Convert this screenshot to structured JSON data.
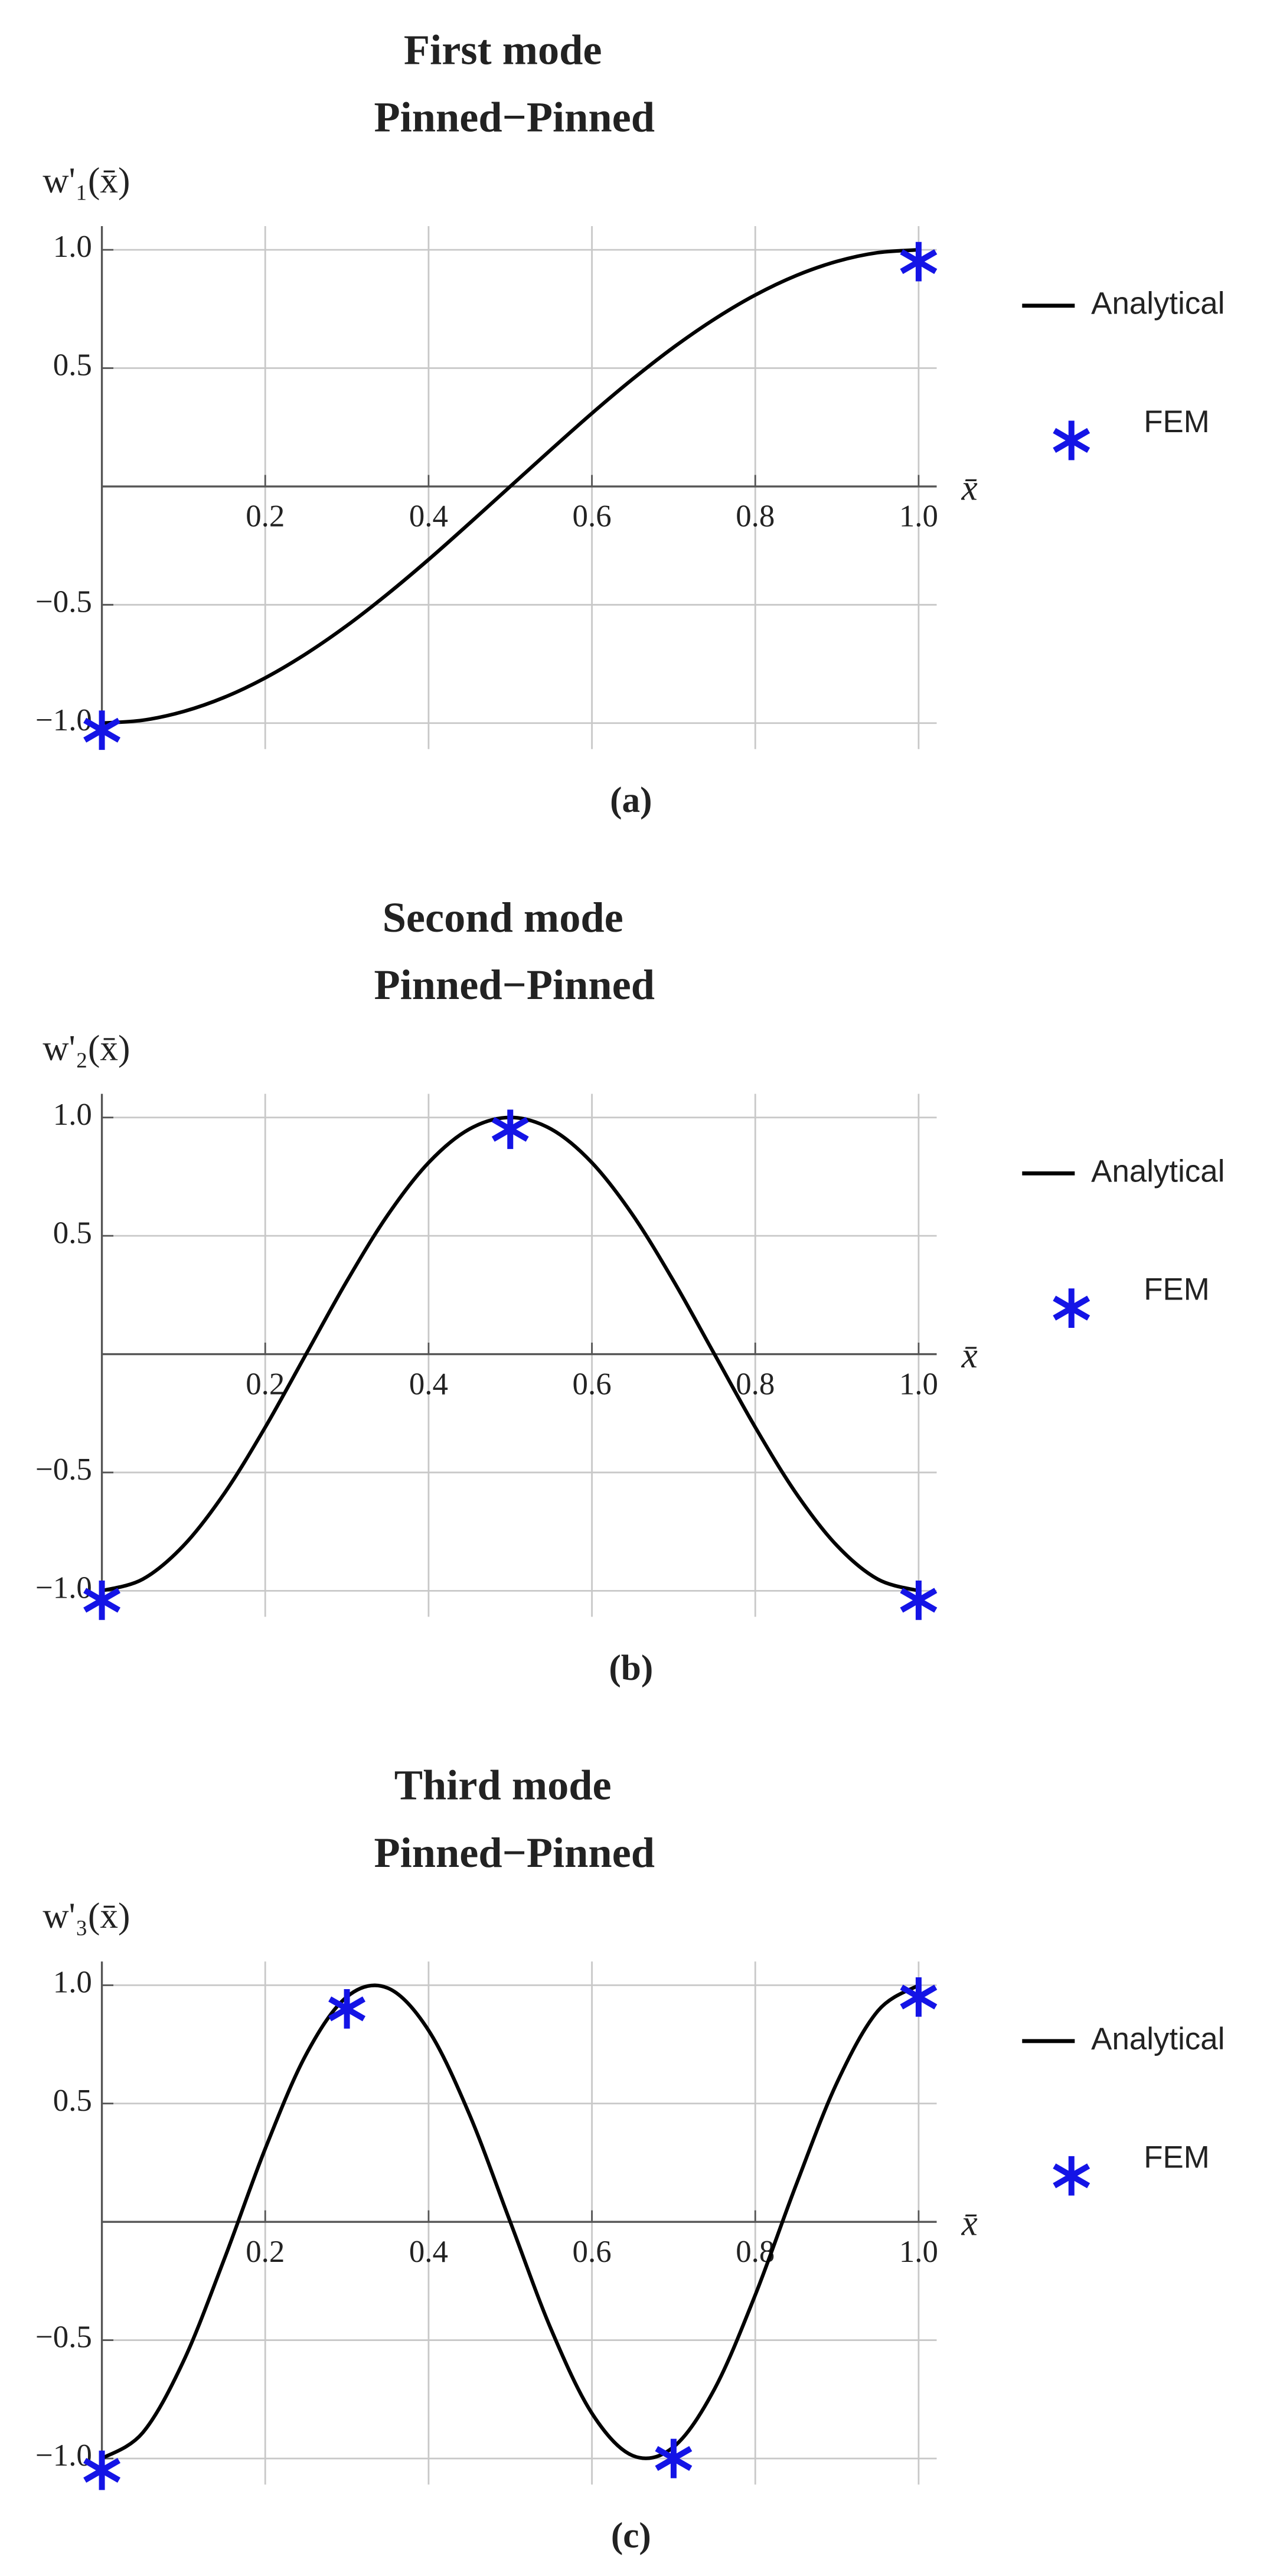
{
  "chart_data": [
    {
      "type": "line",
      "title": "First mode",
      "subtitle": "Pinned−Pinned",
      "y_label": "w'₁(x̄)",
      "x_label": "x̄",
      "caption": "(a)",
      "xlim": [
        0,
        1.022
      ],
      "ylim": [
        -1.11,
        1.1
      ],
      "xticks": [
        0.2,
        0.4,
        0.6,
        0.8,
        {
          "value": 1,
          "label": "1.0"
        }
      ],
      "yticks": [
        {
          "value": -1,
          "label": "−1.0"
        },
        {
          "value": -0.5,
          "label": "−0.5"
        },
        0.5,
        {
          "value": 1,
          "label": "1.0"
        }
      ],
      "grid": true,
      "legend": "right",
      "series": [
        {
          "name": "Analytical",
          "type": "line",
          "color": "#000000",
          "x": [
            0,
            0.05,
            0.1,
            0.15,
            0.2,
            0.25,
            0.3,
            0.35,
            0.4,
            0.45,
            0.5,
            0.55,
            0.6,
            0.65,
            0.7,
            0.75,
            0.8,
            0.85,
            0.9,
            0.95,
            1
          ],
          "values": [
            -1,
            -0.988,
            -0.951,
            -0.891,
            -0.809,
            -0.707,
            -0.588,
            -0.454,
            -0.309,
            -0.156,
            0,
            0.156,
            0.309,
            0.454,
            0.588,
            0.707,
            0.809,
            0.891,
            0.951,
            0.988,
            1
          ]
        },
        {
          "name": "FEM",
          "type": "scatter",
          "color": "#1414e6",
          "x": [
            0,
            1
          ],
          "values": [
            -1.03,
            0.95
          ]
        }
      ]
    },
    {
      "type": "line",
      "title": "Second mode",
      "subtitle": "Pinned−Pinned",
      "y_label": "w'₂(x̄)",
      "x_label": "x̄",
      "caption": "(b)",
      "xlim": [
        0,
        1.022
      ],
      "ylim": [
        -1.11,
        1.1
      ],
      "xticks": [
        0.2,
        0.4,
        0.6,
        0.8,
        {
          "value": 1,
          "label": "1.0"
        }
      ],
      "yticks": [
        {
          "value": -1,
          "label": "−1.0"
        },
        {
          "value": -0.5,
          "label": "−0.5"
        },
        0.5,
        {
          "value": 1,
          "label": "1.0"
        }
      ],
      "grid": true,
      "legend": "right",
      "series": [
        {
          "name": "Analytical",
          "type": "line",
          "color": "#000000",
          "x": [
            0,
            0.05,
            0.1,
            0.15,
            0.2,
            0.25,
            0.3,
            0.35,
            0.4,
            0.45,
            0.5,
            0.55,
            0.6,
            0.65,
            0.7,
            0.75,
            0.8,
            0.85,
            0.9,
            0.95,
            1
          ],
          "values": [
            -1,
            -0.951,
            -0.809,
            -0.588,
            -0.309,
            0,
            0.309,
            0.588,
            0.809,
            0.951,
            1,
            0.951,
            0.809,
            0.588,
            0.309,
            0,
            -0.309,
            -0.588,
            -0.809,
            -0.951,
            -1
          ]
        },
        {
          "name": "FEM",
          "type": "scatter",
          "color": "#1414e6",
          "x": [
            0,
            0.5,
            1
          ],
          "values": [
            -1.04,
            0.95,
            -1.04
          ]
        }
      ]
    },
    {
      "type": "line",
      "title": "Third mode",
      "subtitle": "Pinned−Pinned",
      "y_label": "w'₃(x̄)",
      "x_label": "x̄",
      "caption": "(c)",
      "xlim": [
        0,
        1.022
      ],
      "ylim": [
        -1.11,
        1.1
      ],
      "xticks": [
        0.2,
        0.4,
        0.6,
        0.8,
        {
          "value": 1,
          "label": "1.0"
        }
      ],
      "yticks": [
        {
          "value": -1,
          "label": "−1.0"
        },
        {
          "value": -0.5,
          "label": "−0.5"
        },
        0.5,
        {
          "value": 1,
          "label": "1.0"
        }
      ],
      "grid": true,
      "legend": "right",
      "series": [
        {
          "name": "Analytical",
          "type": "line",
          "color": "#000000",
          "x": [
            0,
            0.05,
            0.1,
            0.15,
            0.2,
            0.25,
            0.3,
            0.35,
            0.4,
            0.45,
            0.5,
            0.55,
            0.6,
            0.65,
            0.7,
            0.75,
            0.8,
            0.85,
            0.9,
            0.95,
            1
          ],
          "values": [
            -1,
            -0.891,
            -0.588,
            -0.156,
            0.309,
            0.707,
            0.951,
            0.988,
            0.809,
            0.454,
            0,
            -0.454,
            -0.809,
            -0.988,
            -0.951,
            -0.707,
            -0.309,
            0.156,
            0.588,
            0.891,
            1
          ]
        },
        {
          "name": "FEM",
          "type": "scatter",
          "color": "#1414e6",
          "x": [
            0,
            0.3,
            0.7,
            1
          ],
          "values": [
            -1.05,
            0.9,
            -1.0,
            0.95
          ]
        }
      ]
    }
  ]
}
